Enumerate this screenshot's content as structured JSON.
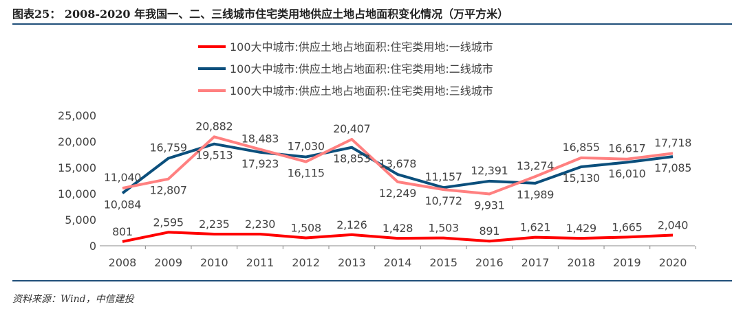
{
  "title": "图表25：  2008-2020 年我国一、二、三线城市住宅类用地供应土地占地面积变化情况（万平方米）",
  "source": "资料来源：Wind，中信建投",
  "chart_data": {
    "type": "line",
    "title": "2008-2020 年我国一、二、三线城市住宅类用地供应土地占地面积变化情况（万平方米）",
    "categories": [
      "2008",
      "2009",
      "2010",
      "2011",
      "2012",
      "2013",
      "2014",
      "2015",
      "2016",
      "2017",
      "2018",
      "2019",
      "2020"
    ],
    "ylim": [
      0,
      25000
    ],
    "yticks": [
      0,
      5000,
      10000,
      15000,
      20000,
      25000
    ],
    "ytick_labels": [
      "0",
      "5,000",
      "10,000",
      "15,000",
      "20,000",
      "25,000"
    ],
    "legend_position": "top",
    "series": [
      {
        "name": "100大中城市:供应土地占地面积:住宅类用地:一线城市",
        "color": "#ff0000",
        "values": [
          801,
          2595,
          2235,
          2230,
          1508,
          2126,
          1428,
          1503,
          891,
          1621,
          1429,
          1665,
          2040
        ]
      },
      {
        "name": "100大中城市:供应土地占地面积:住宅类用地:二线城市",
        "color": "#0b4f7c",
        "values": [
          10084,
          16759,
          19513,
          17923,
          17030,
          18853,
          13678,
          11157,
          12391,
          11989,
          15130,
          16010,
          17085
        ]
      },
      {
        "name": "100大中城市:供应土地占地面积:住宅类用地:三线城市",
        "color": "#ff8080",
        "values": [
          11040,
          12807,
          20882,
          18483,
          16115,
          20407,
          12249,
          10772,
          9931,
          13274,
          16855,
          16617,
          17718
        ]
      }
    ]
  }
}
